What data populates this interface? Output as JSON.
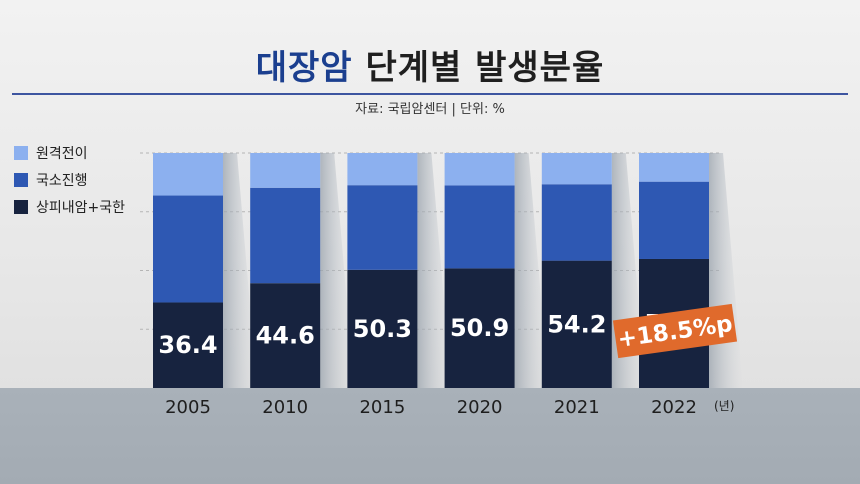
{
  "title": {
    "highlight": "대장암",
    "rest": "단계별 발생분율"
  },
  "source": "자료: 국립암센터  |  단위: %",
  "colors": {
    "metastatic": "#8cb0ef",
    "regional": "#2e58b3",
    "localized": "#17233f",
    "badge": "#e06a2c",
    "title_highlight": "#1b3f8f"
  },
  "legend": [
    {
      "label": "원격전이",
      "color": "#8cb0ef"
    },
    {
      "label": "국소진행",
      "color": "#2e58b3"
    },
    {
      "label": "상피내암+국한",
      "color": "#17233f"
    }
  ],
  "chart_data": {
    "type": "bar",
    "stacked": true,
    "categories": [
      "2005",
      "2010",
      "2015",
      "2020",
      "2021",
      "2022"
    ],
    "x_unit": "(년)",
    "ylim": [
      0,
      100
    ],
    "series": [
      {
        "name": "상피내암+국한",
        "values": [
          36.4,
          44.6,
          50.3,
          50.9,
          54.2,
          54.9
        ],
        "labels": [
          "36.4",
          "44.6",
          "50.3",
          "50.9",
          "54.2",
          "54.9"
        ]
      },
      {
        "name": "국소진행",
        "values": [
          45.5,
          40.6,
          36.0,
          35.3,
          32.5,
          32.9
        ]
      },
      {
        "name": "원격전이",
        "values": [
          18.1,
          14.8,
          13.7,
          13.8,
          13.3,
          12.2
        ]
      }
    ],
    "annotation": "+18.5%p",
    "grid": true
  }
}
